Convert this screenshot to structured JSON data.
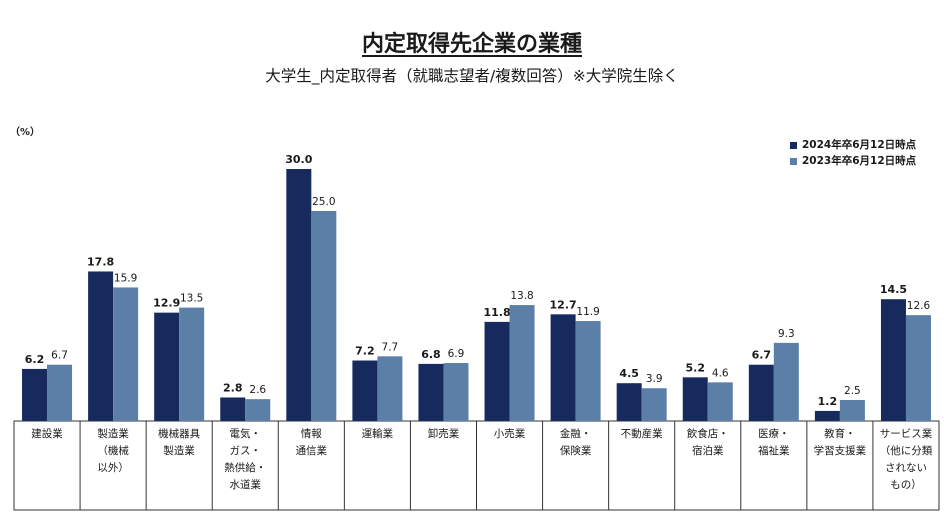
{
  "title": "内定取得先企業の業種",
  "subtitle": "大学生_内定取得者（就職志望者/複数回答）※大学院生除く",
  "unit_label": "（%）",
  "colors": {
    "series_2024": "#172a5e",
    "series_2023": "#5b7fa7"
  },
  "legend": [
    {
      "label": "2024年卒6月12日時点"
    },
    {
      "label": "2023年卒6月12日時点"
    }
  ],
  "chart_data": {
    "type": "bar",
    "categories": [
      [
        "建設業"
      ],
      [
        "製造業",
        "（機械",
        "以外）"
      ],
      [
        "機械器具",
        "製造業"
      ],
      [
        "電気・",
        "ガス・",
        "熱供給・",
        "水道業"
      ],
      [
        "情報",
        "通信業"
      ],
      [
        "運輸業"
      ],
      [
        "卸売業"
      ],
      [
        "小売業"
      ],
      [
        "金融・",
        "保険業"
      ],
      [
        "不動産業"
      ],
      [
        "飲食店・",
        "宿泊業"
      ],
      [
        "医療・",
        "福祉業"
      ],
      [
        "教育・",
        "学習支援業"
      ],
      [
        "サービス業",
        "（他に分類",
        "されない",
        "もの）"
      ]
    ],
    "series": [
      {
        "name": "2024年卒6月12日時点",
        "values": [
          6.2,
          17.8,
          12.9,
          2.8,
          30.0,
          7.2,
          6.8,
          11.8,
          12.7,
          4.5,
          5.2,
          6.7,
          1.2,
          14.5
        ]
      },
      {
        "name": "2023年卒6月12日時点",
        "values": [
          6.7,
          15.9,
          13.5,
          2.6,
          25.0,
          7.7,
          6.9,
          13.8,
          11.9,
          3.9,
          4.6,
          9.3,
          2.5,
          12.6
        ]
      }
    ],
    "ylim": [
      0,
      30
    ],
    "grid": false,
    "legend_position": "top-right"
  }
}
